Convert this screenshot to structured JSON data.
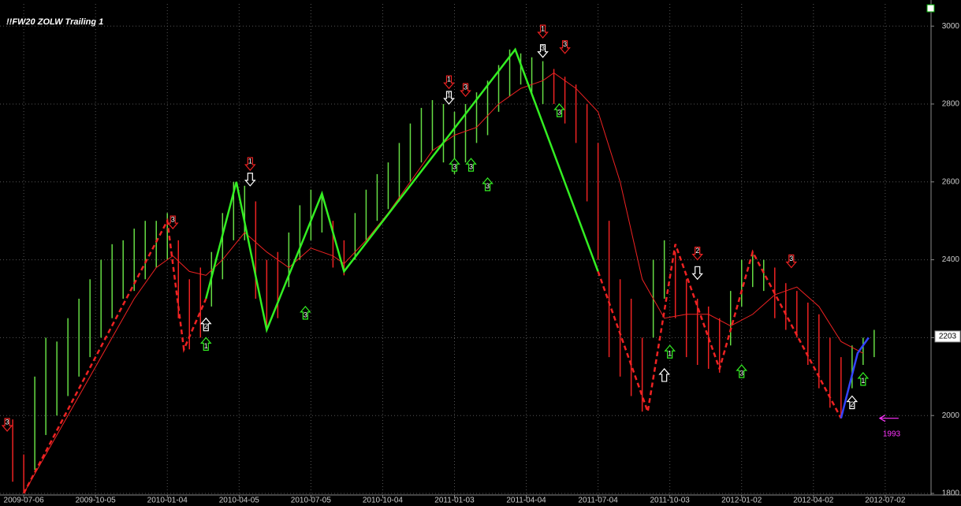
{
  "chart_data": {
    "type": "ohlc",
    "title": "!!FW20 ZOLW Trailing 1",
    "xlim": [
      -4.3,
      164.3
    ],
    "ylim": [
      1796,
      3057
    ],
    "grid": true,
    "xticks": [
      {
        "value": 0,
        "label": "2009-07-06"
      },
      {
        "value": 13,
        "label": "2009-10-05"
      },
      {
        "value": 26,
        "label": "2010-01-04"
      },
      {
        "value": 39,
        "label": "2010-04-05"
      },
      {
        "value": 52,
        "label": "2010-07-05"
      },
      {
        "value": 65,
        "label": "2010-10-04"
      },
      {
        "value": 78,
        "label": "2011-01-03"
      },
      {
        "value": 91,
        "label": "2011-04-04"
      },
      {
        "value": 104,
        "label": "2011-07-04"
      },
      {
        "value": 117,
        "label": "2011-10-03"
      },
      {
        "value": 130,
        "label": "2012-01-02"
      },
      {
        "value": 143,
        "label": "2012-04-02"
      },
      {
        "value": 156,
        "label": "2012-07-02"
      }
    ],
    "yticks": [
      1800,
      2000,
      2200,
      2400,
      2600,
      2800,
      3000
    ],
    "last_value": 2203,
    "series": [
      {
        "color": "#66dd44",
        "x": [
          2,
          4,
          6,
          8,
          10,
          12,
          14,
          16,
          18,
          20,
          22,
          24,
          26,
          34,
          36,
          38,
          40,
          48,
          50,
          52,
          54,
          60,
          62,
          64,
          66,
          68,
          70,
          72,
          74,
          76,
          78,
          80,
          82,
          84,
          86,
          88,
          90,
          92,
          94,
          114,
          116,
          128,
          130,
          132,
          134,
          150,
          152,
          154
        ],
        "low": [
          1860,
          1950,
          2000,
          2050,
          2100,
          2150,
          2200,
          2250,
          2300,
          2320,
          2350,
          2380,
          2400,
          2280,
          2350,
          2450,
          2450,
          2330,
          2400,
          2450,
          2470,
          2400,
          2450,
          2500,
          2530,
          2550,
          2600,
          2650,
          2680,
          2650,
          2620,
          2650,
          2700,
          2720,
          2780,
          2820,
          2850,
          2830,
          2800,
          2200,
          2300,
          2180,
          2280,
          2330,
          2320,
          2070,
          2130,
          2150
        ],
        "high": [
          2100,
          2200,
          2190,
          2250,
          2300,
          2350,
          2400,
          2440,
          2450,
          2480,
          2500,
          2500,
          2520,
          2420,
          2520,
          2600,
          2590,
          2470,
          2540,
          2580,
          2570,
          2520,
          2580,
          2620,
          2650,
          2700,
          2750,
          2790,
          2810,
          2800,
          2780,
          2800,
          2830,
          2860,
          2900,
          2940,
          2930,
          2920,
          2910,
          2400,
          2450,
          2320,
          2400,
          2420,
          2400,
          2180,
          2200,
          2220
        ]
      },
      {
        "color": "#ee2222",
        "x": [
          -2,
          0,
          28,
          30,
          32,
          42,
          44,
          46,
          56,
          58,
          96,
          98,
          100,
          102,
          104,
          106,
          108,
          110,
          112,
          118,
          120,
          122,
          124,
          126,
          136,
          138,
          140,
          142,
          144,
          146,
          148
        ],
        "low": [
          1830,
          1800,
          2250,
          2170,
          2200,
          2300,
          2230,
          2250,
          2380,
          2360,
          2800,
          2750,
          2700,
          2550,
          2400,
          2150,
          2100,
          2050,
          2010,
          2250,
          2150,
          2130,
          2120,
          2110,
          2250,
          2220,
          2200,
          2130,
          2070,
          2020,
          1993
        ],
        "high": [
          1990,
          1900,
          2450,
          2350,
          2380,
          2550,
          2400,
          2420,
          2500,
          2450,
          2890,
          2870,
          2850,
          2800,
          2700,
          2500,
          2350,
          2300,
          2200,
          2420,
          2350,
          2300,
          2280,
          2250,
          2380,
          2340,
          2320,
          2290,
          2260,
          2200,
          2150
        ]
      }
    ],
    "average": {
      "color": "#ee2222",
      "x": [
        0,
        4,
        8,
        12,
        16,
        20,
        24,
        27,
        30,
        33,
        36,
        40,
        44,
        48,
        52,
        56,
        58,
        62,
        66,
        70,
        74,
        78,
        82,
        86,
        90,
        94,
        96,
        100,
        104,
        108,
        112,
        116,
        120,
        124,
        128,
        132,
        136,
        140,
        144,
        148,
        152
      ],
      "values": [
        1800,
        1900,
        2000,
        2100,
        2200,
        2300,
        2380,
        2410,
        2370,
        2360,
        2400,
        2470,
        2420,
        2380,
        2430,
        2410,
        2390,
        2450,
        2520,
        2600,
        2680,
        2720,
        2740,
        2800,
        2840,
        2860,
        2880,
        2840,
        2780,
        2600,
        2350,
        2250,
        2260,
        2260,
        2230,
        2260,
        2310,
        2330,
        2280,
        2190,
        2160
      ]
    },
    "zigzag": [
      {
        "color": "#ee2222",
        "dashed": true,
        "x": [
          0,
          26,
          29,
          33
        ],
        "values": [
          1800,
          2500,
          2170,
          2300
        ]
      },
      {
        "color": "#33ee22",
        "dashed": false,
        "x": [
          33,
          38.5,
          44,
          54,
          58,
          89,
          104
        ],
        "values": [
          2300,
          2600,
          2220,
          2570,
          2370,
          2940,
          2370
        ]
      },
      {
        "color": "#ee2222",
        "dashed": true,
        "x": [
          104,
          113,
          118,
          126,
          132,
          148
        ],
        "values": [
          2370,
          2010,
          2440,
          2120,
          2420,
          1993
        ]
      },
      {
        "color": "#3344ff",
        "dashed": false,
        "x": [
          148,
          151,
          153
        ],
        "values": [
          1993,
          2160,
          2200
        ]
      }
    ],
    "signals": [
      {
        "x": -3,
        "y": 1960,
        "dir": "down",
        "color": "#ee2222",
        "label": "3"
      },
      {
        "x": 27,
        "y": 2480,
        "dir": "down",
        "color": "#ee2222",
        "label": "3"
      },
      {
        "x": 33,
        "y": 2250,
        "dir": "up",
        "color": "#ffffff",
        "label": "2"
      },
      {
        "x": 33,
        "y": 2200,
        "dir": "up",
        "color": "#33ee22",
        "label": "1"
      },
      {
        "x": 41,
        "y": 2630,
        "dir": "down",
        "color": "#ee2222",
        "label": "1"
      },
      {
        "x": 41,
        "y": 2590,
        "dir": "down",
        "color": "#ffffff"
      },
      {
        "x": 51,
        "y": 2280,
        "dir": "up",
        "color": "#33ee22",
        "label": "3"
      },
      {
        "x": 77,
        "y": 2840,
        "dir": "down",
        "color": "#ee2222",
        "label": "1"
      },
      {
        "x": 77,
        "y": 2800,
        "dir": "down",
        "color": "#ffffff",
        "label": "1"
      },
      {
        "x": 80,
        "y": 2820,
        "dir": "down",
        "color": "#ee2222",
        "label": "3"
      },
      {
        "x": 78,
        "y": 2660,
        "dir": "up",
        "color": "#33ee22",
        "label": "3"
      },
      {
        "x": 81,
        "y": 2660,
        "dir": "up",
        "color": "#33ee22",
        "label": "3"
      },
      {
        "x": 84,
        "y": 2610,
        "dir": "up",
        "color": "#33ee22",
        "label": "3"
      },
      {
        "x": 94,
        "y": 2970,
        "dir": "down",
        "color": "#ee2222",
        "label": "1"
      },
      {
        "x": 94,
        "y": 2920,
        "dir": "down",
        "color": "#ffffff",
        "label": "3"
      },
      {
        "x": 98,
        "y": 2930,
        "dir": "down",
        "color": "#ee2222",
        "label": "3"
      },
      {
        "x": 97,
        "y": 2800,
        "dir": "up",
        "color": "#33ee22",
        "label": "3"
      },
      {
        "x": 117,
        "y": 2180,
        "dir": "up",
        "color": "#33ee22",
        "label": "1"
      },
      {
        "x": 116,
        "y": 2120,
        "dir": "up",
        "color": "#ffffff"
      },
      {
        "x": 122,
        "y": 2400,
        "dir": "down",
        "color": "#ee2222",
        "label": "2"
      },
      {
        "x": 122,
        "y": 2350,
        "dir": "down",
        "color": "#ffffff"
      },
      {
        "x": 130,
        "y": 2130,
        "dir": "up",
        "color": "#33ee22",
        "label": "3"
      },
      {
        "x": 139,
        "y": 2380,
        "dir": "down",
        "color": "#ee2222",
        "label": "3"
      },
      {
        "x": 150,
        "y": 2050,
        "dir": "up",
        "color": "#ffffff",
        "label": "2"
      },
      {
        "x": 152,
        "y": 2110,
        "dir": "up",
        "color": "#33ee22",
        "label": "1"
      }
    ],
    "annotation": {
      "x": 155,
      "y": 1993,
      "label": "1993",
      "color": "#ff33ff"
    }
  }
}
